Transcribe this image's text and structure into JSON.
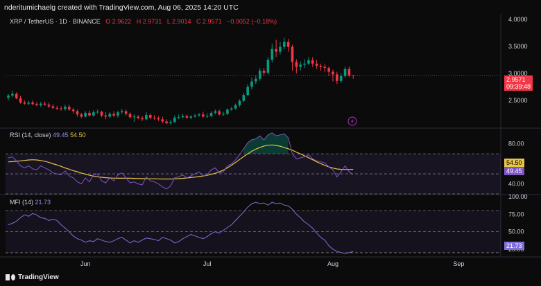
{
  "credit": "nderitumichaelg created with TradingView.com, Aug 06, 2025 14:20 UTC",
  "legend": {
    "symbol": "XRP / TetherUS · 1D · BINANCE",
    "o": "O 2.9622",
    "h": "H 2.9731",
    "l": "L 2.9014",
    "c": "C 2.9571",
    "chg": "−0.0052 (−0.18%)"
  },
  "price_tag": {
    "price": "2.9571",
    "countdown": "09:39:48",
    "color": "#f23645"
  },
  "rsi_legend": {
    "label": "RSI (14, close)",
    "v1": "49.45",
    "v2": "54.50"
  },
  "rsi_tags": {
    "ma": "54.50",
    "rsi": "49.45"
  },
  "mfi_legend": {
    "label": "MFI (14)",
    "v1": "21.73"
  },
  "mfi_tag": "21.73",
  "brand": "TradingView",
  "colors": {
    "up": "#089981",
    "down": "#f23645",
    "rsi": "#7e57c2",
    "rsi_ma": "#e8c545",
    "mfi": "#7e6fd9"
  },
  "chart_data": [
    {
      "type": "candlestick",
      "y_axis_ticks": [
        "2.5000",
        "3.0000",
        "3.5000",
        "4.0000"
      ],
      "x_axis_ticks": [
        "Jun",
        "Jul",
        "Aug",
        "Sep"
      ],
      "ylim": [
        2.0,
        4.1
      ],
      "x": [
        "2025-05-13",
        "2025-05-14",
        "2025-05-15",
        "2025-05-16",
        "2025-05-17",
        "2025-05-18",
        "2025-05-19",
        "2025-05-20",
        "2025-05-21",
        "2025-05-22",
        "2025-05-23",
        "2025-05-24",
        "2025-05-25",
        "2025-05-26",
        "2025-05-27",
        "2025-05-28",
        "2025-05-29",
        "2025-05-30",
        "2025-05-31",
        "2025-06-01",
        "2025-06-02",
        "2025-06-03",
        "2025-06-04",
        "2025-06-05",
        "2025-06-06",
        "2025-06-07",
        "2025-06-08",
        "2025-06-09",
        "2025-06-10",
        "2025-06-11",
        "2025-06-12",
        "2025-06-13",
        "2025-06-14",
        "2025-06-15",
        "2025-06-16",
        "2025-06-17",
        "2025-06-18",
        "2025-06-19",
        "2025-06-20",
        "2025-06-21",
        "2025-06-22",
        "2025-06-23",
        "2025-06-24",
        "2025-06-25",
        "2025-06-26",
        "2025-06-27",
        "2025-06-28",
        "2025-06-29",
        "2025-06-30",
        "2025-07-01",
        "2025-07-02",
        "2025-07-03",
        "2025-07-04",
        "2025-07-05",
        "2025-07-06",
        "2025-07-07",
        "2025-07-08",
        "2025-07-09",
        "2025-07-10",
        "2025-07-11",
        "2025-07-12",
        "2025-07-13",
        "2025-07-14",
        "2025-07-15",
        "2025-07-16",
        "2025-07-17",
        "2025-07-18",
        "2025-07-19",
        "2025-07-20",
        "2025-07-21",
        "2025-07-22",
        "2025-07-23",
        "2025-07-24",
        "2025-07-25",
        "2025-07-26",
        "2025-07-27",
        "2025-07-28",
        "2025-07-29",
        "2025-07-30",
        "2025-07-31",
        "2025-08-01",
        "2025-08-02",
        "2025-08-03",
        "2025-08-04",
        "2025-08-05",
        "2025-08-06"
      ],
      "open": [
        2.55,
        2.59,
        2.62,
        2.54,
        2.46,
        2.44,
        2.46,
        2.43,
        2.41,
        2.44,
        2.42,
        2.39,
        2.36,
        2.35,
        2.34,
        2.38,
        2.33,
        2.3,
        2.24,
        2.2,
        2.27,
        2.22,
        2.28,
        2.29,
        2.22,
        2.2,
        2.25,
        2.22,
        2.28,
        2.3,
        2.25,
        2.19,
        2.2,
        2.17,
        2.15,
        2.23,
        2.18,
        2.17,
        2.15,
        2.11,
        2.08,
        2.1,
        2.18,
        2.19,
        2.21,
        2.18,
        2.2,
        2.22,
        2.24,
        2.2,
        2.21,
        2.27,
        2.3,
        2.24,
        2.25,
        2.33,
        2.35,
        2.41,
        2.49,
        2.6,
        2.75,
        2.85,
        2.9,
        3.05,
        3.01,
        3.25,
        3.45,
        3.4,
        3.49,
        3.58,
        3.49,
        3.21,
        3.12,
        3.16,
        3.18,
        3.24,
        3.18,
        3.14,
        3.12,
        3.1,
        3.03,
        2.98,
        2.86,
        2.95,
        3.08,
        2.96
      ],
      "high": [
        2.62,
        2.68,
        2.65,
        2.58,
        2.5,
        2.49,
        2.5,
        2.47,
        2.47,
        2.48,
        2.46,
        2.43,
        2.4,
        2.39,
        2.42,
        2.42,
        2.36,
        2.33,
        2.27,
        2.3,
        2.31,
        2.32,
        2.33,
        2.31,
        2.28,
        2.28,
        2.3,
        2.31,
        2.34,
        2.33,
        2.28,
        2.24,
        2.23,
        2.21,
        2.28,
        2.26,
        2.23,
        2.21,
        2.2,
        2.15,
        2.14,
        2.22,
        2.24,
        2.25,
        2.24,
        2.23,
        2.25,
        2.27,
        2.29,
        2.26,
        2.3,
        2.33,
        2.33,
        2.29,
        2.35,
        2.38,
        2.44,
        2.52,
        2.64,
        2.8,
        2.92,
        2.96,
        3.1,
        3.1,
        3.3,
        3.55,
        3.62,
        3.58,
        3.66,
        3.64,
        3.53,
        3.26,
        3.22,
        3.26,
        3.3,
        3.3,
        3.25,
        3.18,
        3.17,
        3.13,
        3.07,
        3.03,
        3.0,
        3.12,
        3.13,
        2.97
      ],
      "low": [
        2.5,
        2.56,
        2.52,
        2.44,
        2.42,
        2.41,
        2.41,
        2.39,
        2.38,
        2.4,
        2.36,
        2.34,
        2.32,
        2.31,
        2.31,
        2.31,
        2.26,
        2.2,
        2.17,
        2.18,
        2.2,
        2.2,
        2.25,
        2.19,
        2.15,
        2.17,
        2.19,
        2.18,
        2.25,
        2.22,
        2.16,
        2.1,
        2.15,
        2.12,
        2.13,
        2.15,
        2.14,
        2.12,
        2.08,
        2.06,
        2.05,
        2.08,
        2.15,
        2.17,
        2.16,
        2.15,
        2.18,
        2.2,
        2.18,
        2.17,
        2.19,
        2.24,
        2.22,
        2.21,
        2.23,
        2.31,
        2.33,
        2.38,
        2.46,
        2.58,
        2.7,
        2.8,
        2.86,
        2.95,
        2.98,
        3.2,
        3.3,
        3.35,
        3.44,
        3.4,
        3.05,
        3.0,
        3.05,
        3.1,
        3.15,
        3.12,
        3.08,
        3.05,
        3.02,
        2.95,
        2.85,
        2.8,
        2.82,
        2.92,
        2.93,
        2.9
      ],
      "close": [
        2.59,
        2.62,
        2.54,
        2.46,
        2.44,
        2.46,
        2.43,
        2.41,
        2.44,
        2.42,
        2.39,
        2.36,
        2.35,
        2.34,
        2.38,
        2.33,
        2.3,
        2.24,
        2.2,
        2.27,
        2.22,
        2.28,
        2.29,
        2.22,
        2.2,
        2.25,
        2.22,
        2.28,
        2.3,
        2.25,
        2.19,
        2.2,
        2.17,
        2.15,
        2.23,
        2.18,
        2.17,
        2.15,
        2.11,
        2.08,
        2.1,
        2.18,
        2.19,
        2.21,
        2.18,
        2.2,
        2.22,
        2.24,
        2.2,
        2.21,
        2.27,
        2.3,
        2.24,
        2.25,
        2.33,
        2.35,
        2.41,
        2.49,
        2.6,
        2.75,
        2.85,
        2.9,
        3.05,
        3.01,
        3.25,
        3.45,
        3.4,
        3.49,
        3.58,
        3.49,
        3.21,
        3.12,
        3.16,
        3.18,
        3.24,
        3.18,
        3.14,
        3.12,
        3.1,
        3.03,
        2.98,
        2.86,
        2.95,
        3.08,
        2.96,
        2.9571
      ]
    },
    {
      "type": "line",
      "title": "RSI (14, close)",
      "y_axis_ticks": [
        "40.00",
        "80.00"
      ],
      "ylim": [
        30,
        95
      ],
      "levels": [
        70,
        50,
        30
      ],
      "series": [
        {
          "name": "RSI",
          "values": [
            66,
            67,
            63,
            58,
            56,
            58,
            55,
            54,
            58,
            56,
            54,
            51,
            50,
            49,
            53,
            48,
            46,
            42,
            40,
            46,
            42,
            49,
            50,
            43,
            41,
            46,
            43,
            49,
            51,
            46,
            41,
            42,
            40,
            39,
            47,
            43,
            42,
            40,
            37,
            35,
            38,
            46,
            47,
            49,
            46,
            48,
            50,
            52,
            48,
            49,
            54,
            56,
            51,
            52,
            58,
            60,
            64,
            69,
            75,
            81,
            84,
            85,
            88,
            84,
            89,
            91,
            88,
            89,
            90,
            86,
            70,
            65,
            66,
            67,
            69,
            65,
            63,
            62,
            61,
            57,
            54,
            47,
            52,
            58,
            52,
            49.45
          ]
        },
        {
          "name": "MA",
          "values": [
            62,
            62.2,
            62.6,
            63,
            63.4,
            63.9,
            64.1,
            63.9,
            63.3,
            62.6,
            61.5,
            60.1,
            58.9,
            57.5,
            55.9,
            54.6,
            53.2,
            52.1,
            50.8,
            49.7,
            48.6,
            47.8,
            47.1,
            46.6,
            46.2,
            45.9,
            45.7,
            45.6,
            45.6,
            45.6,
            45.6,
            45.5,
            45.4,
            45.3,
            45.2,
            45.1,
            45.1,
            45.0,
            44.9,
            44.9,
            44.9,
            45.0,
            45.2,
            45.5,
            45.9,
            46.3,
            46.8,
            47.3,
            47.9,
            48.6,
            49.5,
            50.6,
            52.0,
            53.8,
            56.0,
            58.6,
            61.4,
            64.4,
            67.3,
            70.0,
            72.6,
            74.7,
            76.4,
            77.8,
            78.6,
            78.9,
            78.4,
            77.6,
            76.4,
            75.1,
            73.6,
            71.7,
            69.9,
            68.0,
            66.1,
            64.1,
            62.0,
            60.2,
            58.5,
            57.0,
            55.8,
            54.9,
            54.5,
            54.4,
            54.4,
            54.5
          ]
        }
      ]
    },
    {
      "type": "line",
      "title": "MFI (14)",
      "y_axis_ticks": [
        "25.00",
        "50.00",
        "75.00",
        "100.00"
      ],
      "ylim": [
        15,
        102
      ],
      "levels": [
        80,
        50,
        20
      ],
      "series": [
        {
          "name": "MFI",
          "values": [
            60,
            62,
            65,
            70,
            74,
            72,
            76,
            74,
            70,
            69,
            66,
            68,
            66,
            60,
            55,
            50,
            44,
            40,
            38,
            35,
            37,
            36,
            40,
            38,
            36,
            35,
            37,
            40,
            42,
            38,
            34,
            37,
            35,
            38,
            41,
            40,
            39,
            37,
            42,
            40,
            38,
            34,
            36,
            40,
            43,
            46,
            44,
            42,
            40,
            43,
            47,
            50,
            48,
            52,
            56,
            60,
            66,
            72,
            78,
            85,
            90,
            92,
            90,
            91,
            88,
            92,
            90,
            91,
            88,
            87,
            82,
            75,
            70,
            64,
            60,
            55,
            48,
            42,
            38,
            30,
            25,
            22,
            20,
            19,
            20,
            21.73
          ]
        }
      ]
    }
  ]
}
